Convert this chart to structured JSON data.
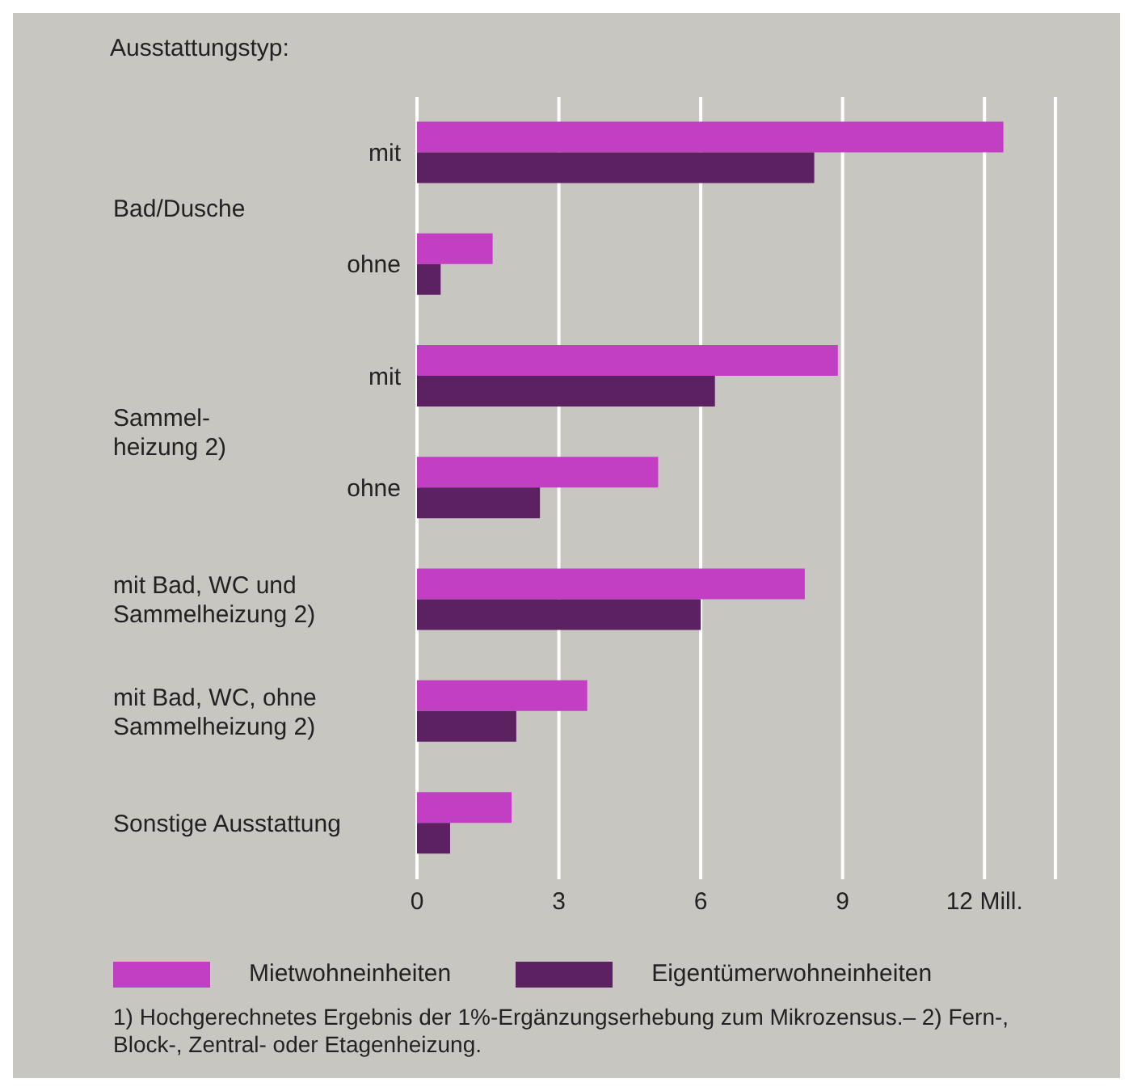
{
  "chart_data": {
    "type": "bar",
    "orientation": "horizontal",
    "ylabel": "Ausstattungstyp:",
    "categories": [
      "mit",
      "ohne",
      "mit",
      "ohne",
      "mit Bad, WC und Sammelheizung 2)",
      "mit Bad, WC, ohne Sammelheizung 2)",
      "Sonstige Ausstattung"
    ],
    "series": [
      {
        "name": "Mietwohneinheiten",
        "color": "#c23fc4",
        "values": [
          12.4,
          1.6,
          8.9,
          5.1,
          8.2,
          3.6,
          2.0
        ]
      },
      {
        "name": "Eigentümerwohneinheiten",
        "color": "#5b2160",
        "values": [
          8.4,
          0.5,
          6.3,
          2.6,
          6.0,
          2.1,
          0.7
        ]
      }
    ],
    "xlim": [
      0,
      13.5
    ],
    "xticks": [
      0,
      3,
      6,
      9,
      {
        "value": 12,
        "label": "12 Mill."
      }
    ],
    "grid": "x",
    "legend": "bottom",
    "annotations": [
      "Bad/Dusche",
      "Sammel-\nheizung 2)",
      "1) Hochgerechnetes Ergebnis der 1%-Ergänzungserhebung zum Mikrozensus.– 2) Fern-, Block-, Zentral- oder Etagenheizung."
    ]
  }
}
